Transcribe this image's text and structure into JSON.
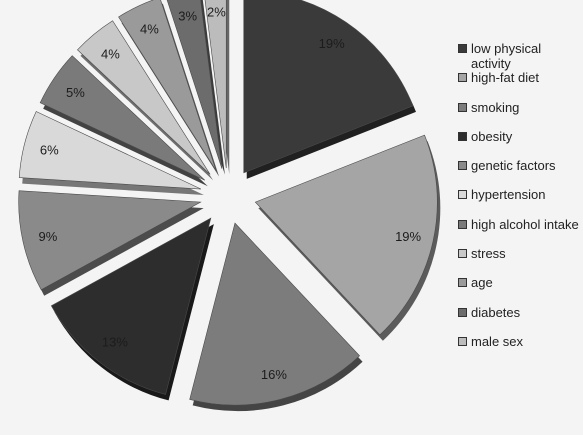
{
  "chart_data": {
    "type": "pie",
    "title": "",
    "categories": [
      "low physical activity",
      "high-fat diet",
      "smoking",
      "obesity",
      "genetic factors",
      "hypertension",
      "high alcohol intake",
      "stress",
      "age",
      "diabetes",
      "male sex"
    ],
    "values": [
      19,
      19,
      16,
      13,
      9,
      6,
      5,
      4,
      4,
      3,
      2
    ],
    "value_labels": [
      "19%",
      "19%",
      "16%",
      "13%",
      "9%",
      "6%",
      "5%",
      "4%",
      "4%",
      "3%",
      "2%"
    ],
    "colors": [
      "#3a3a3a",
      "#a5a5a5",
      "#7c7c7c",
      "#2d2d2d",
      "#8a8a8a",
      "#d9d9d9",
      "#7a7a7a",
      "#c8c8c8",
      "#9a9a9a",
      "#6c6c6c",
      "#bcbcbc"
    ],
    "legend_placement": "right",
    "exploded": true,
    "three_d": true
  }
}
